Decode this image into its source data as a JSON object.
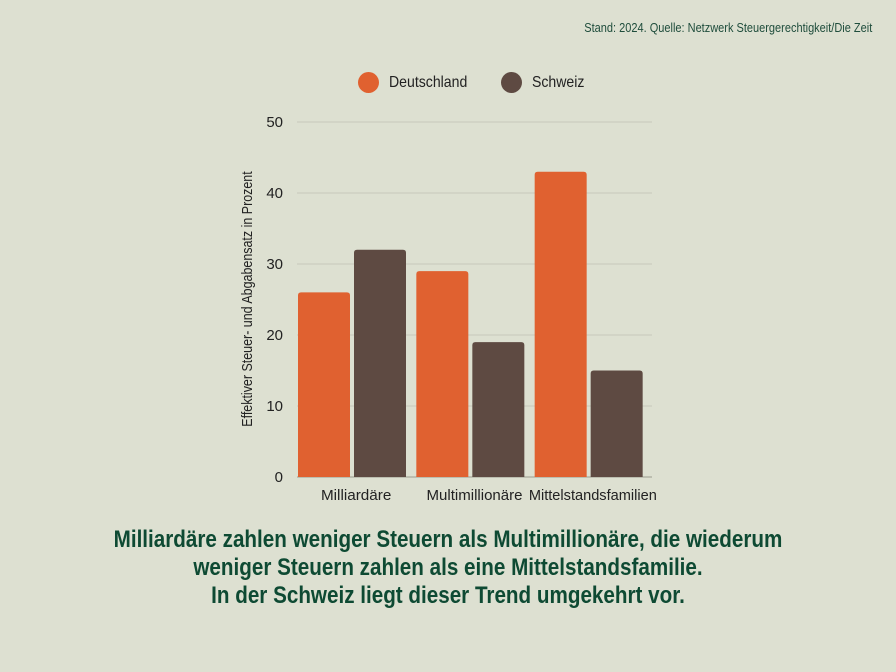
{
  "source_note": "Stand: 2024. Quelle: Netzwerk Steuergerechtigkeit/Die Zeit",
  "caption": [
    "Milliardäre zahlen weniger Steuern als Multimillionäre, die wiederum",
    "weniger Steuern zahlen als eine Mittelstandsfamilie.",
    "In der Schweiz liegt dieser Trend umgekehrt vor."
  ],
  "chart_data": {
    "type": "bar",
    "categories": [
      "Milliardäre",
      "Multimillionäre",
      "Mittelstandsfamilien"
    ],
    "series": [
      {
        "name": "Deutschland",
        "values": [
          26,
          29,
          43
        ],
        "color": "#e06130"
      },
      {
        "name": "Schweiz",
        "values": [
          32,
          19,
          15
        ],
        "color": "#5e4a42"
      }
    ],
    "ylabel": "Effektiver Steuer- und Abgabensatz in Prozent",
    "xlabel": "",
    "ylim": [
      0,
      50
    ],
    "yticks": [
      0,
      10,
      20,
      30,
      40,
      50
    ],
    "grid": true,
    "legend": "top-center"
  }
}
